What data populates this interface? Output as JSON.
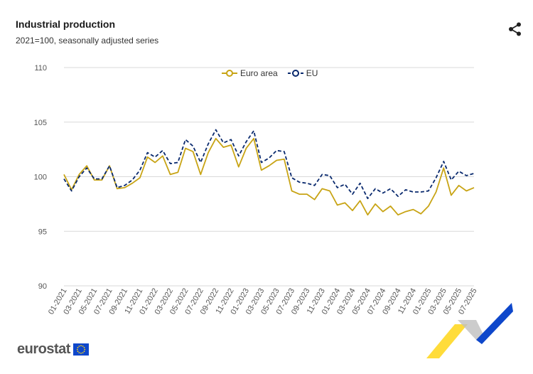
{
  "header": {
    "title": "Industrial production",
    "subtitle": "2021=100, seasonally adjusted series"
  },
  "brand": {
    "name": "eurostat"
  },
  "icons": {
    "share": "share-icon",
    "flag": "eu-flag-icon"
  },
  "colors": {
    "euro_area": "#c8a415",
    "eu": "#0a2a6e",
    "grid": "#d9d9d9",
    "axis_text": "#555555"
  },
  "chart_data": {
    "type": "line",
    "title": "Industrial production",
    "subtitle": "2021=100, seasonally adjusted series",
    "xlabel": "",
    "ylabel": "",
    "ylim": [
      90,
      110
    ],
    "yticks": [
      90,
      95,
      100,
      105,
      110
    ],
    "grid": true,
    "legend_position": "top-center",
    "x": [
      "01-2021",
      "02-2021",
      "03-2021",
      "04-2021",
      "05-2021",
      "06-2021",
      "07-2021",
      "08-2021",
      "09-2021",
      "10-2021",
      "11-2021",
      "12-2021",
      "01-2022",
      "02-2022",
      "03-2022",
      "04-2022",
      "05-2022",
      "06-2022",
      "07-2022",
      "08-2022",
      "09-2022",
      "10-2022",
      "11-2022",
      "12-2022",
      "01-2023",
      "02-2023",
      "03-2023",
      "04-2023",
      "05-2023",
      "06-2023",
      "07-2023",
      "08-2023",
      "09-2023",
      "10-2023",
      "11-2023",
      "12-2023",
      "01-2024",
      "02-2024",
      "03-2024",
      "04-2024",
      "05-2024",
      "06-2024",
      "07-2024",
      "08-2024",
      "09-2024",
      "10-2024",
      "11-2024",
      "12-2024",
      "01-2025",
      "02-2025",
      "03-2025",
      "04-2025",
      "05-2025",
      "06-2025",
      "07-2025"
    ],
    "xtick_labels": [
      "01-2021",
      "03-2021",
      "05-2021",
      "07-2021",
      "09-2021",
      "11-2021",
      "01-2022",
      "03-2022",
      "05-2022",
      "07-2022",
      "09-2022",
      "11-2022",
      "01-2023",
      "03-2023",
      "05-2023",
      "07-2023",
      "09-2023",
      "11-2023",
      "01-2024",
      "03-2024",
      "05-2024",
      "07-2024",
      "09-2024",
      "11-2024",
      "01-2025",
      "03-2025",
      "05-2025",
      "07-2025"
    ],
    "series": [
      {
        "name": "Euro area",
        "style": "solid-circle",
        "values": [
          100.2,
          98.8,
          100.2,
          101.0,
          99.7,
          99.7,
          101.0,
          98.9,
          99.0,
          99.4,
          99.9,
          101.8,
          101.3,
          101.9,
          100.2,
          100.4,
          102.6,
          102.3,
          100.2,
          102.2,
          103.5,
          102.7,
          102.9,
          100.9,
          102.6,
          103.5,
          100.6,
          101.0,
          101.5,
          101.6,
          98.7,
          98.4,
          98.4,
          97.9,
          98.9,
          98.7,
          97.4,
          97.6,
          96.9,
          97.8,
          96.5,
          97.5,
          96.8,
          97.3,
          96.5,
          96.8,
          97.0,
          96.6,
          97.3,
          98.6,
          100.8,
          98.3,
          99.2,
          98.7,
          99.0
        ]
      },
      {
        "name": "EU",
        "style": "dashed-circle",
        "values": [
          99.8,
          98.7,
          100.0,
          100.8,
          99.8,
          99.8,
          101.0,
          99.0,
          99.2,
          99.7,
          100.6,
          102.2,
          101.8,
          102.4,
          101.2,
          101.3,
          103.4,
          102.8,
          101.3,
          103.0,
          104.3,
          103.1,
          103.4,
          101.9,
          103.2,
          104.2,
          101.3,
          101.7,
          102.4,
          102.3,
          99.9,
          99.5,
          99.4,
          99.2,
          100.2,
          100.1,
          99.0,
          99.3,
          98.4,
          99.4,
          98.0,
          98.9,
          98.5,
          98.9,
          98.2,
          98.8,
          98.6,
          98.6,
          98.7,
          99.9,
          101.4,
          99.7,
          100.5,
          100.1,
          100.3
        ]
      }
    ]
  }
}
